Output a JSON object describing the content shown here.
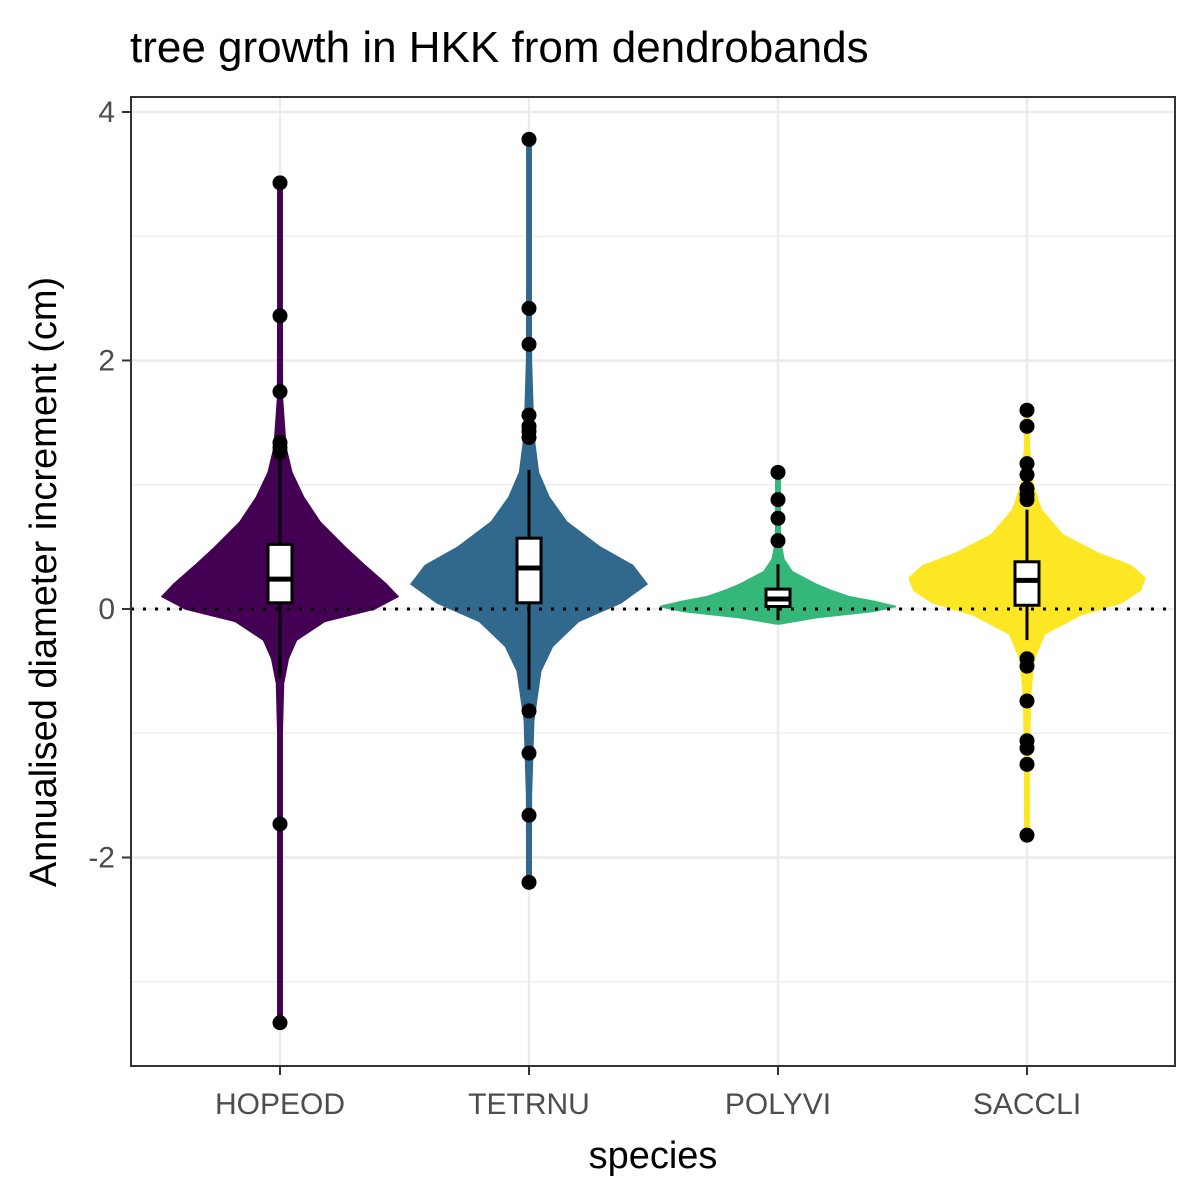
{
  "chart_data": {
    "type": "violin",
    "title": "tree growth in HKK from dendrobands",
    "xlabel": "species",
    "ylabel": "Annualised diameter increment (cm)",
    "ylim": [
      -3.7,
      4.0
    ],
    "yticks": [
      -2,
      0,
      2,
      4
    ],
    "yticklabels": [
      "-2",
      "0",
      "2",
      "4"
    ],
    "grid": true,
    "reference_line": {
      "y": 0,
      "style": "dotted"
    },
    "categories": [
      "HOPEOD",
      "TETRNU",
      "POLYVI",
      "SACCLI"
    ],
    "series": [
      {
        "category": "HOPEOD",
        "color": "#440154",
        "box": {
          "q1": 0.05,
          "median": 0.24,
          "q3": 0.52,
          "whisker_low": -0.55,
          "whisker_high": 1.2
        },
        "outliers": [
          3.43,
          2.36,
          1.75,
          1.34,
          1.3,
          1.26,
          -1.73,
          -3.33
        ],
        "density": [
          [
            -3.33,
            0.01
          ],
          [
            -2.0,
            0.01
          ],
          [
            -1.0,
            0.01
          ],
          [
            -0.6,
            0.03
          ],
          [
            -0.4,
            0.07
          ],
          [
            -0.25,
            0.14
          ],
          [
            -0.1,
            0.38
          ],
          [
            0.0,
            0.8
          ],
          [
            0.1,
            1.0
          ],
          [
            0.2,
            0.9
          ],
          [
            0.35,
            0.72
          ],
          [
            0.5,
            0.55
          ],
          [
            0.7,
            0.34
          ],
          [
            0.9,
            0.2
          ],
          [
            1.1,
            0.1
          ],
          [
            1.3,
            0.05
          ],
          [
            1.7,
            0.02
          ],
          [
            2.4,
            0.01
          ],
          [
            3.43,
            0.01
          ]
        ]
      },
      {
        "category": "TETRNU",
        "color": "#31688e",
        "box": {
          "q1": 0.05,
          "median": 0.33,
          "q3": 0.57,
          "whisker_low": -0.65,
          "whisker_high": 1.12
        },
        "outliers": [
          3.78,
          2.42,
          2.13,
          1.56,
          1.47,
          1.43,
          1.38,
          -0.82,
          -1.16,
          -1.66,
          -2.2
        ],
        "density": [
          [
            -2.2,
            0.01
          ],
          [
            -1.5,
            0.02
          ],
          [
            -0.9,
            0.04
          ],
          [
            -0.5,
            0.1
          ],
          [
            -0.3,
            0.2
          ],
          [
            -0.1,
            0.42
          ],
          [
            0.05,
            0.78
          ],
          [
            0.2,
            1.0
          ],
          [
            0.35,
            0.88
          ],
          [
            0.5,
            0.6
          ],
          [
            0.7,
            0.32
          ],
          [
            0.9,
            0.17
          ],
          [
            1.1,
            0.08
          ],
          [
            1.4,
            0.04
          ],
          [
            2.0,
            0.02
          ],
          [
            2.5,
            0.01
          ],
          [
            3.78,
            0.01
          ]
        ]
      },
      {
        "category": "POLYVI",
        "color": "#35b779",
        "box": {
          "q1": 0.02,
          "median": 0.08,
          "q3": 0.16,
          "whisker_low": -0.09,
          "whisker_high": 0.36
        },
        "outliers": [
          1.1,
          0.88,
          0.73,
          0.55
        ],
        "density": [
          [
            -0.12,
            0.01
          ],
          [
            -0.07,
            0.32
          ],
          [
            -0.02,
            0.8
          ],
          [
            0.02,
            1.0
          ],
          [
            0.06,
            0.82
          ],
          [
            0.1,
            0.6
          ],
          [
            0.15,
            0.45
          ],
          [
            0.2,
            0.32
          ],
          [
            0.3,
            0.12
          ],
          [
            0.4,
            0.05
          ],
          [
            0.55,
            0.02
          ],
          [
            0.8,
            0.01
          ],
          [
            1.1,
            0.005
          ]
        ]
      },
      {
        "category": "SACCLI",
        "color": "#fde725",
        "box": {
          "q1": 0.03,
          "median": 0.23,
          "q3": 0.38,
          "whisker_low": -0.25,
          "whisker_high": 0.8
        },
        "outliers": [
          1.6,
          1.47,
          1.17,
          1.08,
          0.97,
          0.92,
          0.88,
          -0.4,
          -0.46,
          -0.74,
          -1.06,
          -1.12,
          -1.25,
          -1.82
        ],
        "density": [
          [
            -1.82,
            0.01
          ],
          [
            -1.2,
            0.02
          ],
          [
            -0.7,
            0.03
          ],
          [
            -0.4,
            0.06
          ],
          [
            -0.2,
            0.15
          ],
          [
            -0.05,
            0.45
          ],
          [
            0.05,
            0.8
          ],
          [
            0.15,
            0.96
          ],
          [
            0.25,
            1.0
          ],
          [
            0.35,
            0.88
          ],
          [
            0.45,
            0.6
          ],
          [
            0.6,
            0.3
          ],
          [
            0.8,
            0.12
          ],
          [
            1.0,
            0.05
          ],
          [
            1.3,
            0.02
          ],
          [
            1.6,
            0.01
          ]
        ]
      }
    ]
  }
}
